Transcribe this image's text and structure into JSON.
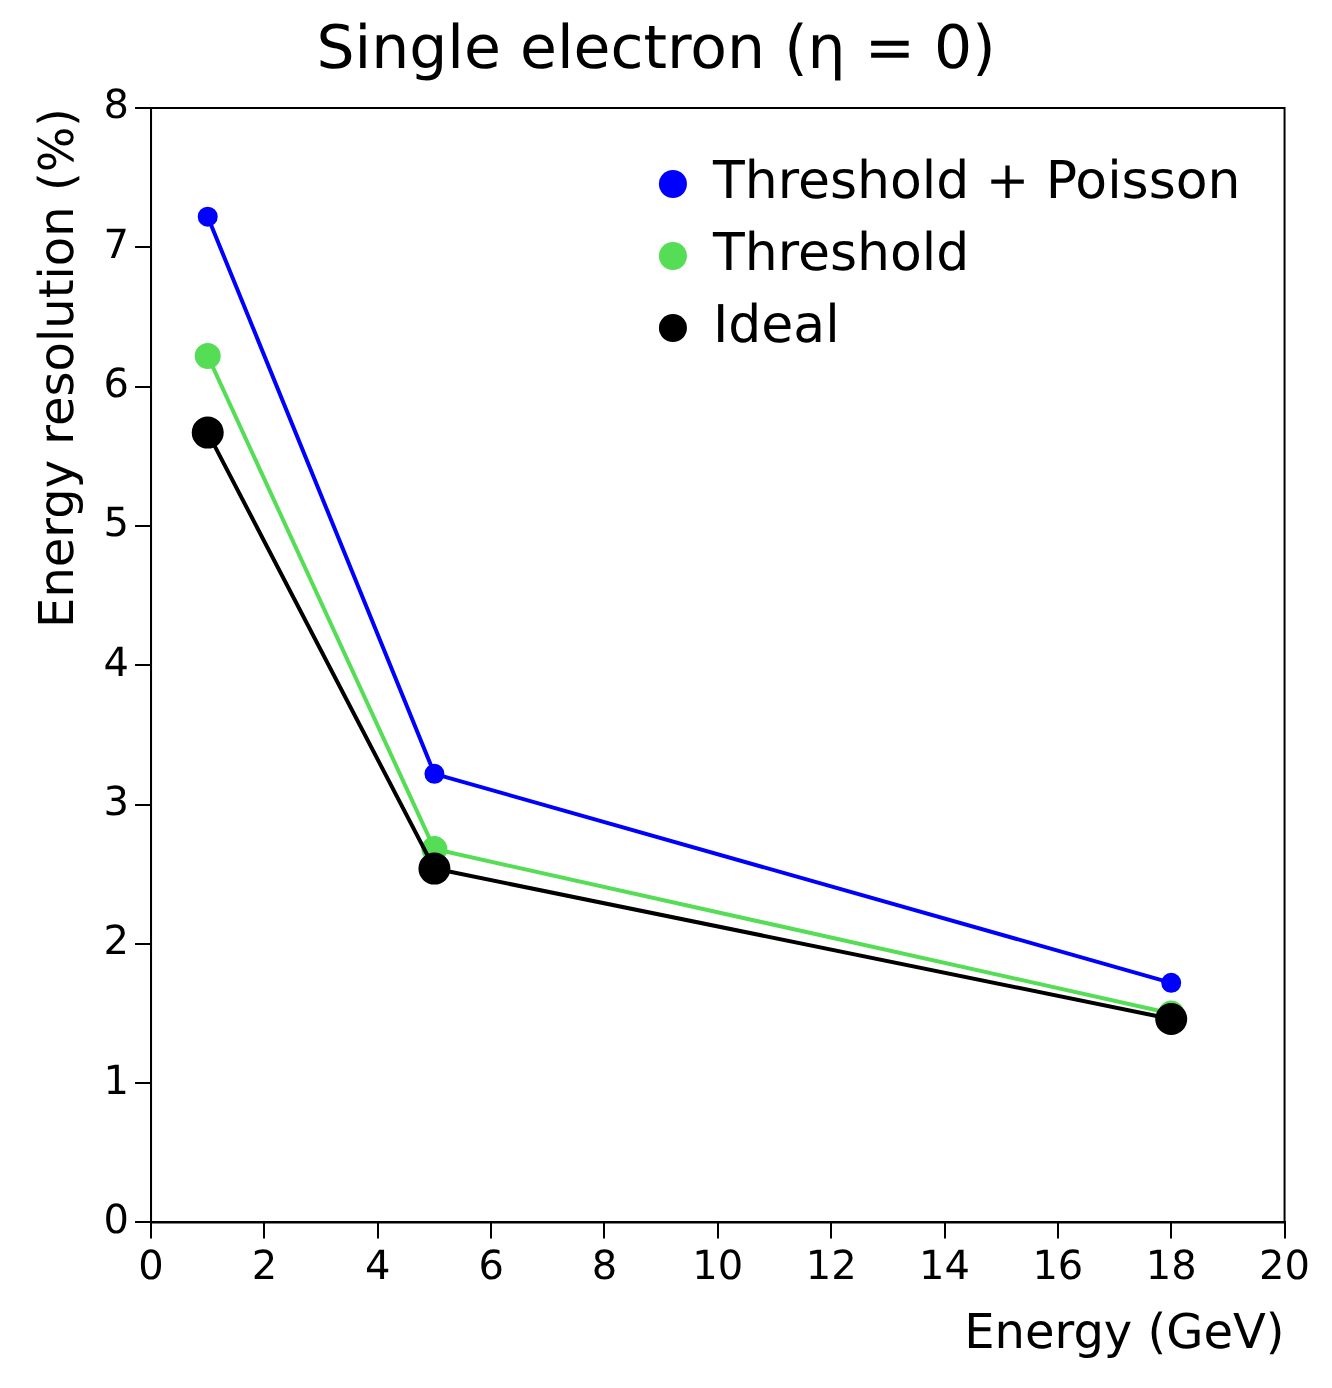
{
  "chart_data": {
    "type": "line",
    "title": "Single electron (η = 0)",
    "xlabel": "Energy (GeV)",
    "ylabel": "Energy resolution (%)",
    "x": [
      1,
      5,
      18
    ],
    "series": [
      {
        "name": "Threshold + Poisson",
        "color": "#0000ff",
        "values": [
          7.22,
          3.22,
          1.72
        ]
      },
      {
        "name": "Threshold",
        "color": "#55dd55",
        "values": [
          6.22,
          2.68,
          1.5
        ]
      },
      {
        "name": "Ideal",
        "color": "#000000",
        "values": [
          5.67,
          2.54,
          1.46
        ]
      }
    ],
    "xlim": [
      0,
      20
    ],
    "xticks": [
      0,
      2,
      4,
      6,
      8,
      10,
      12,
      14,
      16,
      18,
      20
    ],
    "ylim": [
      0,
      8
    ],
    "yticks": [
      0,
      1,
      2,
      3,
      4,
      5,
      6,
      7,
      8
    ],
    "grid": false,
    "legend": "top right",
    "marker": "circle",
    "line_style": "solid"
  }
}
